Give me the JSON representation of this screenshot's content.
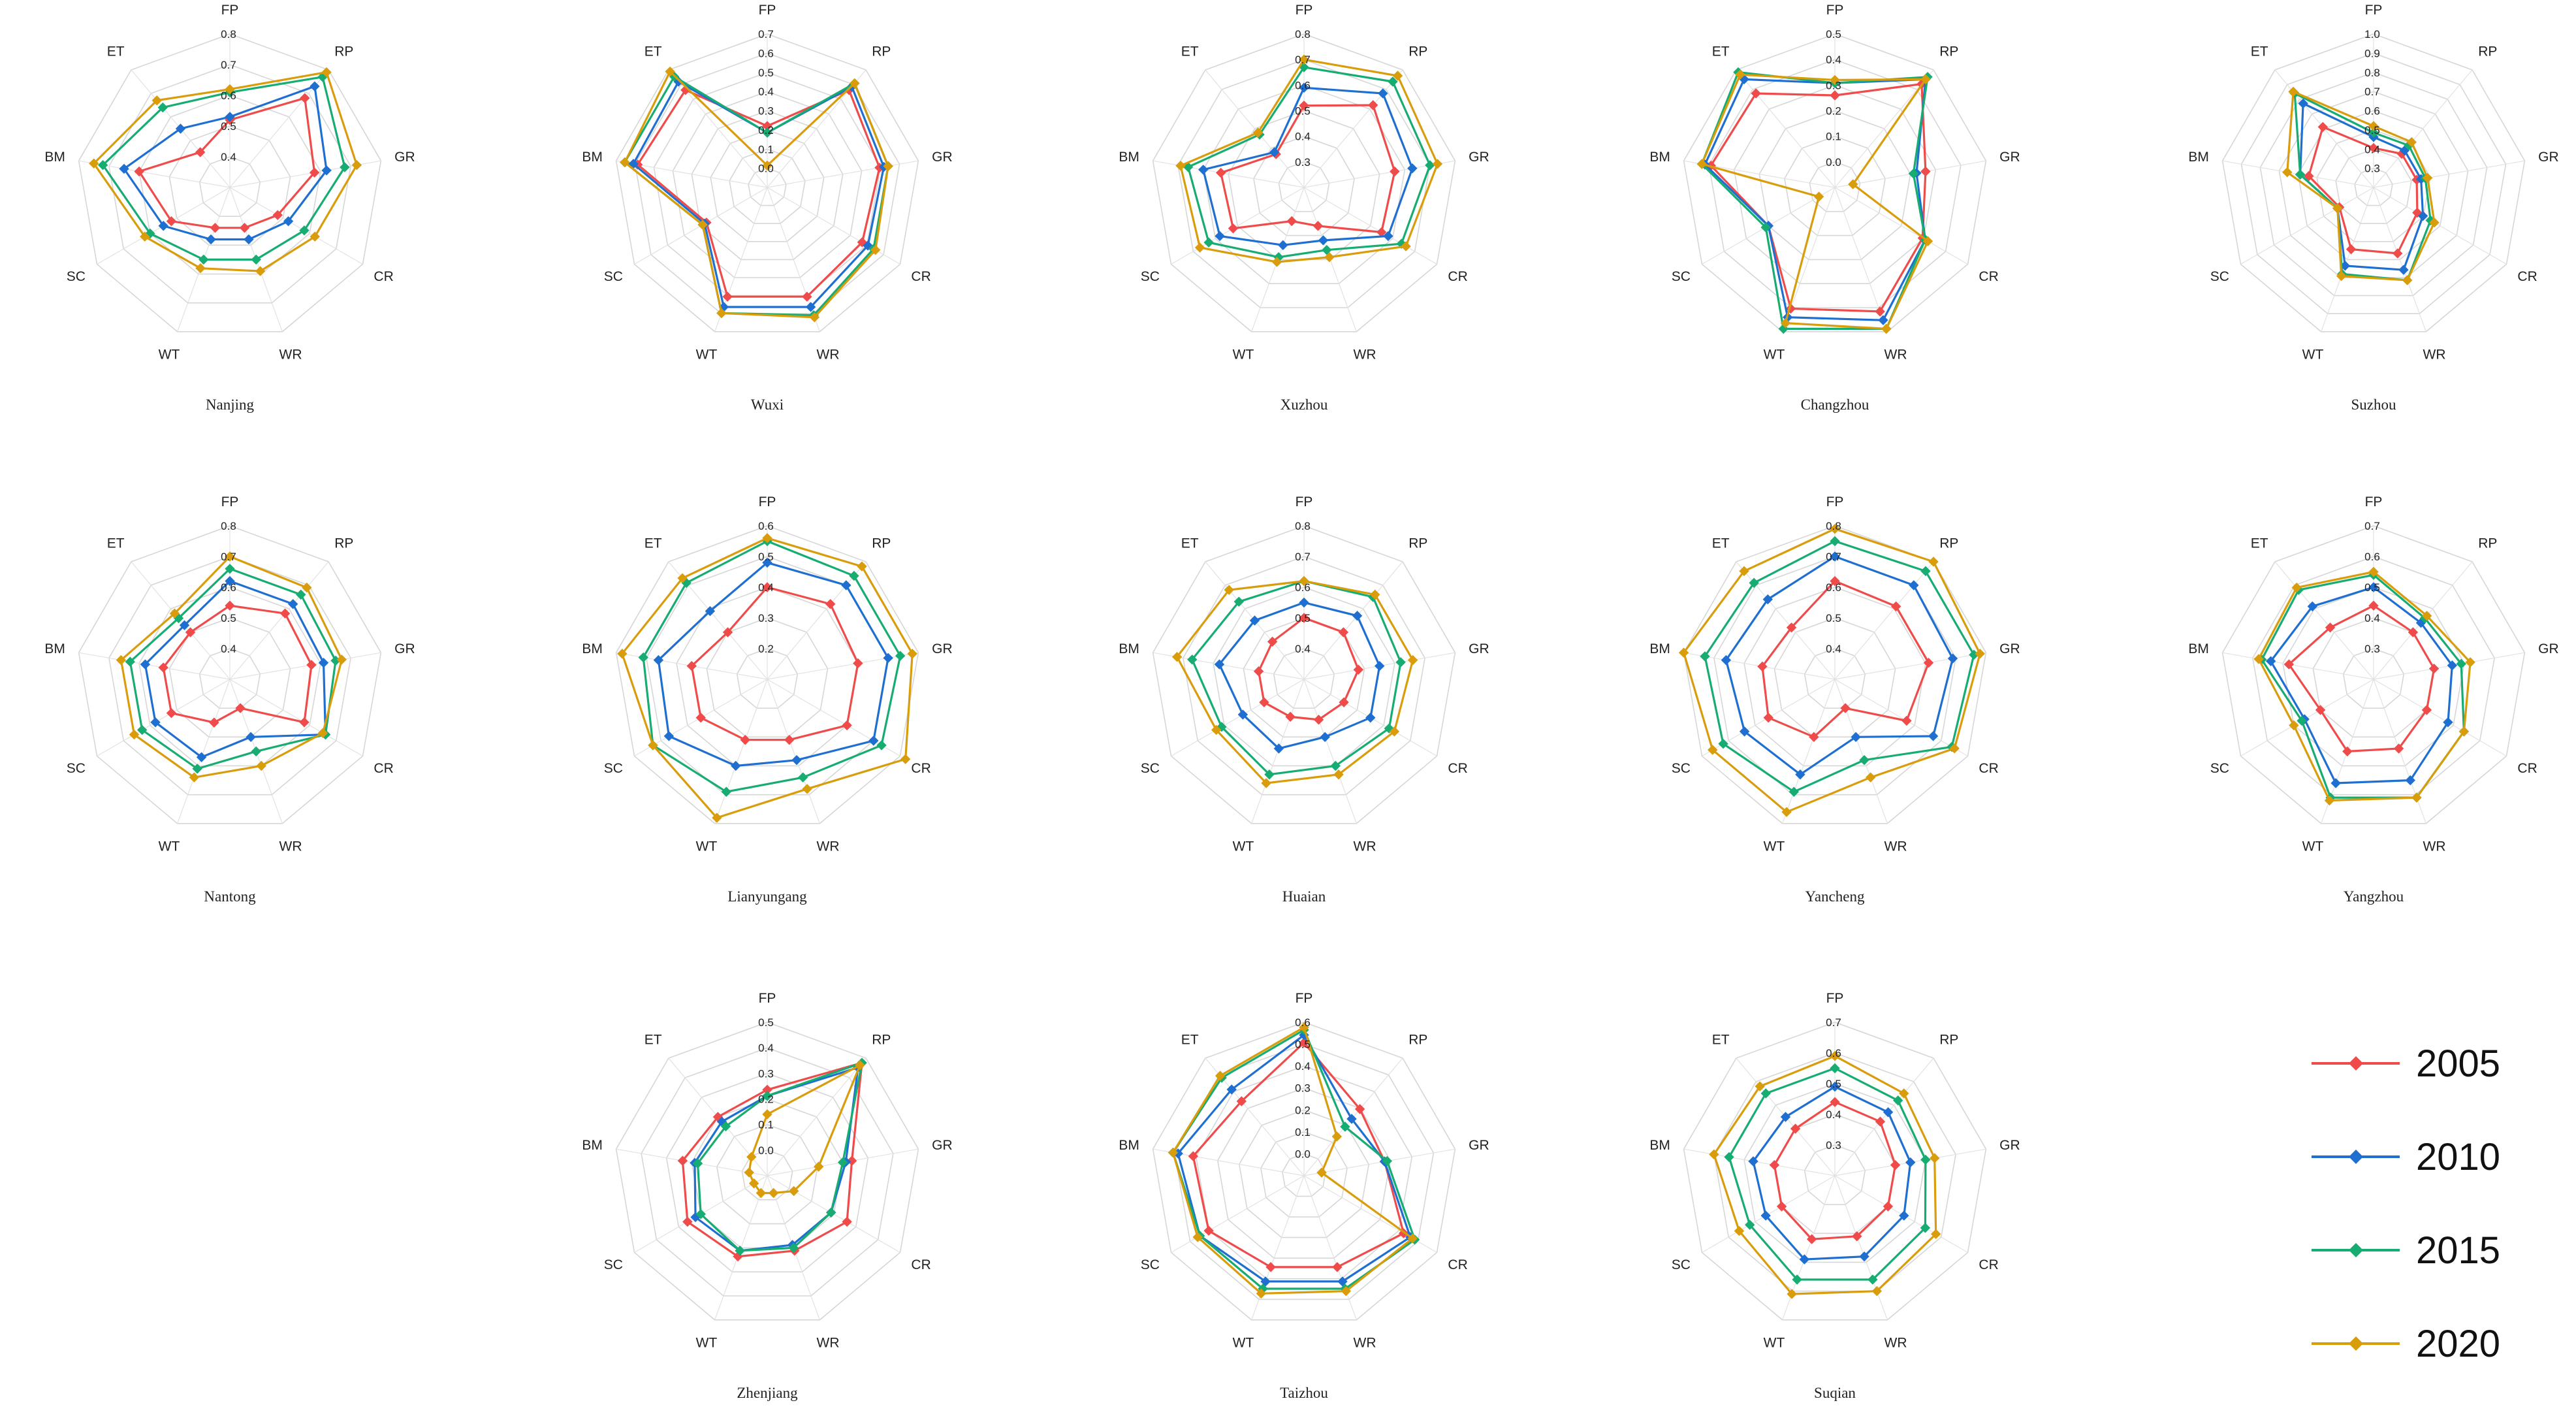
{
  "legend": {
    "entries": [
      {
        "label": "2005",
        "color": "#ef4b4b"
      },
      {
        "label": "2010",
        "color": "#1f6fd1"
      },
      {
        "label": "2015",
        "color": "#16ac72"
      },
      {
        "label": "2020",
        "color": "#d99c0b"
      }
    ]
  },
  "chart_data": [
    {
      "type": "radar",
      "title": "Nanjing",
      "axes": [
        "FP",
        "RP",
        "GR",
        "CR",
        "WR",
        "WT",
        "SC",
        "BM",
        "ET"
      ],
      "ticks": [
        "0.4",
        "0.5",
        "0.6",
        "0.7",
        "0.8"
      ],
      "rmin": 0.3,
      "rmax": 0.8,
      "series": [
        {
          "name": "2005",
          "values": [
            0.52,
            0.68,
            0.58,
            0.48,
            0.44,
            0.44,
            0.52,
            0.6,
            0.45
          ]
        },
        {
          "name": "2010",
          "values": [
            0.53,
            0.73,
            0.62,
            0.52,
            0.48,
            0.48,
            0.55,
            0.65,
            0.55
          ]
        },
        {
          "name": "2015",
          "values": [
            0.61,
            0.77,
            0.68,
            0.58,
            0.55,
            0.55,
            0.6,
            0.72,
            0.64
          ]
        },
        {
          "name": "2020",
          "values": [
            0.62,
            0.79,
            0.72,
            0.62,
            0.59,
            0.58,
            0.62,
            0.75,
            0.67
          ]
        }
      ]
    },
    {
      "type": "radar",
      "title": "Wuxi",
      "axes": [
        "FP",
        "RP",
        "GR",
        "CR",
        "WR",
        "WT",
        "SC",
        "BM",
        "ET"
      ],
      "ticks": [
        "0.0",
        "0.1",
        "0.2",
        "0.3",
        "0.4",
        "0.5",
        "0.6",
        "0.7"
      ],
      "rmin": 0,
      "rmax": 0.7,
      "series": [
        {
          "name": "2005",
          "values": [
            0.28,
            0.58,
            0.52,
            0.5,
            0.53,
            0.53,
            0.32,
            0.6,
            0.58
          ]
        },
        {
          "name": "2010",
          "values": [
            0.25,
            0.6,
            0.54,
            0.53,
            0.58,
            0.58,
            0.33,
            0.62,
            0.63
          ]
        },
        {
          "name": "2015",
          "values": [
            0.25,
            0.62,
            0.56,
            0.56,
            0.62,
            0.61,
            0.34,
            0.66,
            0.66
          ]
        },
        {
          "name": "2020",
          "values": [
            0.1,
            0.62,
            0.56,
            0.57,
            0.63,
            0.61,
            0.34,
            0.66,
            0.69
          ]
        }
      ]
    },
    {
      "type": "radar",
      "title": "Xuzhou",
      "axes": [
        "FP",
        "RP",
        "GR",
        "CR",
        "WR",
        "WT",
        "SC",
        "BM",
        "ET"
      ],
      "ticks": [
        "0.3",
        "0.4",
        "0.5",
        "0.6",
        "0.7",
        "0.8"
      ],
      "rmin": 0.2,
      "rmax": 0.8,
      "series": [
        {
          "name": "2005",
          "values": [
            0.52,
            0.62,
            0.56,
            0.55,
            0.36,
            0.34,
            0.52,
            0.53,
            0.37
          ]
        },
        {
          "name": "2010",
          "values": [
            0.59,
            0.68,
            0.63,
            0.58,
            0.42,
            0.44,
            0.58,
            0.6,
            0.38
          ]
        },
        {
          "name": "2015",
          "values": [
            0.67,
            0.74,
            0.7,
            0.64,
            0.46,
            0.49,
            0.63,
            0.66,
            0.47
          ]
        },
        {
          "name": "2020",
          "values": [
            0.7,
            0.77,
            0.73,
            0.66,
            0.49,
            0.51,
            0.67,
            0.69,
            0.48
          ]
        }
      ]
    },
    {
      "type": "radar",
      "title": "Changzhou",
      "axes": [
        "FP",
        "RP",
        "GR",
        "CR",
        "WR",
        "WT",
        "SC",
        "BM",
        "ET"
      ],
      "ticks": [
        "0.0",
        "0.1",
        "0.2",
        "0.3",
        "0.4",
        "0.5"
      ],
      "rmin": 0,
      "rmax": 0.5,
      "series": [
        {
          "name": "2005",
          "values": [
            0.3,
            0.44,
            0.3,
            0.33,
            0.43,
            0.42,
            0.25,
            0.41,
            0.4
          ]
        },
        {
          "name": "2010",
          "values": [
            0.34,
            0.46,
            0.27,
            0.34,
            0.46,
            0.45,
            0.25,
            0.43,
            0.46
          ]
        },
        {
          "name": "2015",
          "values": [
            0.34,
            0.47,
            0.26,
            0.34,
            0.49,
            0.49,
            0.26,
            0.44,
            0.49
          ]
        },
        {
          "name": "2020",
          "values": [
            0.35,
            0.46,
            0.06,
            0.35,
            0.49,
            0.47,
            0.06,
            0.44,
            0.48
          ]
        }
      ]
    },
    {
      "type": "radar",
      "title": "Suzhou",
      "axes": [
        "FP",
        "RP",
        "GR",
        "CR",
        "WR",
        "WT",
        "SC",
        "BM",
        "ET"
      ],
      "ticks": [
        "0.3",
        "0.4",
        "0.5",
        "0.6",
        "0.7",
        "0.8",
        "0.9",
        "1.0"
      ],
      "rmin": 0.3,
      "rmax": 1.0,
      "series": [
        {
          "name": "2005",
          "values": [
            0.48,
            0.5,
            0.5,
            0.53,
            0.62,
            0.6,
            0.48,
            0.6,
            0.66
          ]
        },
        {
          "name": "2010",
          "values": [
            0.53,
            0.52,
            0.52,
            0.56,
            0.7,
            0.68,
            0.49,
            0.64,
            0.8
          ]
        },
        {
          "name": "2015",
          "values": [
            0.55,
            0.55,
            0.54,
            0.6,
            0.75,
            0.72,
            0.49,
            0.64,
            0.86
          ]
        },
        {
          "name": "2020",
          "values": [
            0.58,
            0.57,
            0.55,
            0.62,
            0.75,
            0.73,
            0.49,
            0.7,
            0.87
          ]
        }
      ]
    },
    {
      "type": "radar",
      "title": "Nantong",
      "axes": [
        "FP",
        "RP",
        "GR",
        "CR",
        "WR",
        "WT",
        "SC",
        "BM",
        "ET"
      ],
      "ticks": [
        "0.4",
        "0.5",
        "0.6",
        "0.7",
        "0.8"
      ],
      "rmin": 0.3,
      "rmax": 0.8,
      "series": [
        {
          "name": "2005",
          "values": [
            0.54,
            0.58,
            0.57,
            0.58,
            0.4,
            0.45,
            0.52,
            0.52,
            0.5
          ]
        },
        {
          "name": "2010",
          "values": [
            0.62,
            0.62,
            0.61,
            0.66,
            0.5,
            0.57,
            0.58,
            0.58,
            0.53
          ]
        },
        {
          "name": "2015",
          "values": [
            0.66,
            0.66,
            0.65,
            0.66,
            0.55,
            0.61,
            0.63,
            0.63,
            0.56
          ]
        },
        {
          "name": "2020",
          "values": [
            0.7,
            0.69,
            0.67,
            0.65,
            0.6,
            0.64,
            0.66,
            0.66,
            0.58
          ]
        }
      ]
    },
    {
      "type": "radar",
      "title": "Lianyungang",
      "axes": [
        "FP",
        "RP",
        "GR",
        "CR",
        "WR",
        "WT",
        "SC",
        "BM",
        "ET"
      ],
      "ticks": [
        "0.2",
        "0.3",
        "0.4",
        "0.5",
        "0.6"
      ],
      "rmin": 0.1,
      "rmax": 0.6,
      "series": [
        {
          "name": "2005",
          "values": [
            0.4,
            0.42,
            0.4,
            0.4,
            0.31,
            0.31,
            0.35,
            0.35,
            0.3
          ]
        },
        {
          "name": "2010",
          "values": [
            0.48,
            0.5,
            0.5,
            0.5,
            0.38,
            0.4,
            0.47,
            0.46,
            0.39
          ]
        },
        {
          "name": "2015",
          "values": [
            0.55,
            0.54,
            0.54,
            0.53,
            0.44,
            0.49,
            0.53,
            0.51,
            0.51
          ]
        },
        {
          "name": "2020",
          "values": [
            0.56,
            0.58,
            0.58,
            0.62,
            0.48,
            0.58,
            0.53,
            0.58,
            0.53
          ]
        }
      ]
    },
    {
      "type": "radar",
      "title": "Huaian",
      "axes": [
        "FP",
        "RP",
        "GR",
        "CR",
        "WR",
        "WT",
        "SC",
        "BM",
        "ET"
      ],
      "ticks": [
        "0.4",
        "0.5",
        "0.6",
        "0.7",
        "0.8"
      ],
      "rmin": 0.3,
      "rmax": 0.8,
      "series": [
        {
          "name": "2005",
          "values": [
            0.5,
            0.5,
            0.48,
            0.45,
            0.44,
            0.43,
            0.45,
            0.45,
            0.46
          ]
        },
        {
          "name": "2010",
          "values": [
            0.55,
            0.57,
            0.55,
            0.55,
            0.5,
            0.54,
            0.53,
            0.58,
            0.55
          ]
        },
        {
          "name": "2015",
          "values": [
            0.62,
            0.65,
            0.62,
            0.62,
            0.6,
            0.63,
            0.61,
            0.67,
            0.63
          ]
        },
        {
          "name": "2020",
          "values": [
            0.62,
            0.66,
            0.66,
            0.64,
            0.63,
            0.66,
            0.63,
            0.72,
            0.68
          ]
        }
      ]
    },
    {
      "type": "radar",
      "title": "Yancheng",
      "axes": [
        "FP",
        "RP",
        "GR",
        "CR",
        "WR",
        "WT",
        "SC",
        "BM",
        "ET"
      ],
      "ticks": [
        "0.4",
        "0.5",
        "0.6",
        "0.7",
        "0.8"
      ],
      "rmin": 0.3,
      "rmax": 0.8,
      "series": [
        {
          "name": "2005",
          "values": [
            0.62,
            0.61,
            0.61,
            0.57,
            0.4,
            0.5,
            0.55,
            0.54,
            0.52
          ]
        },
        {
          "name": "2010",
          "values": [
            0.7,
            0.7,
            0.69,
            0.67,
            0.5,
            0.63,
            0.64,
            0.66,
            0.64
          ]
        },
        {
          "name": "2015",
          "values": [
            0.75,
            0.76,
            0.76,
            0.74,
            0.58,
            0.69,
            0.72,
            0.73,
            0.71
          ]
        },
        {
          "name": "2020",
          "values": [
            0.79,
            0.8,
            0.78,
            0.75,
            0.64,
            0.76,
            0.76,
            0.8,
            0.76
          ]
        }
      ]
    },
    {
      "type": "radar",
      "title": "Yangzhou",
      "axes": [
        "FP",
        "RP",
        "GR",
        "CR",
        "WR",
        "WT",
        "SC",
        "BM",
        "ET"
      ],
      "ticks": [
        "0.3",
        "0.4",
        "0.5",
        "0.6",
        "0.7"
      ],
      "rmin": 0.2,
      "rmax": 0.7,
      "series": [
        {
          "name": "2005",
          "values": [
            0.44,
            0.4,
            0.4,
            0.4,
            0.44,
            0.45,
            0.4,
            0.48,
            0.42
          ]
        },
        {
          "name": "2010",
          "values": [
            0.5,
            0.44,
            0.46,
            0.48,
            0.55,
            0.56,
            0.46,
            0.54,
            0.51
          ]
        },
        {
          "name": "2015",
          "values": [
            0.54,
            0.46,
            0.49,
            0.54,
            0.61,
            0.61,
            0.47,
            0.57,
            0.58
          ]
        },
        {
          "name": "2020",
          "values": [
            0.55,
            0.47,
            0.52,
            0.54,
            0.61,
            0.62,
            0.5,
            0.58,
            0.59
          ]
        }
      ]
    },
    {
      "type": "radar",
      "title": "Zhenjiang",
      "axes": [
        "FP",
        "RP",
        "GR",
        "CR",
        "WR",
        "WT",
        "SC",
        "BM",
        "ET"
      ],
      "ticks": [
        "0.0",
        "0.1",
        "0.2",
        "0.3",
        "0.4",
        "0.5"
      ],
      "rmin": 0,
      "rmax": 0.5,
      "series": [
        {
          "name": "2005",
          "values": [
            0.28,
            0.48,
            0.28,
            0.3,
            0.26,
            0.28,
            0.3,
            0.28,
            0.25
          ]
        },
        {
          "name": "2010",
          "values": [
            0.26,
            0.46,
            0.26,
            0.24,
            0.24,
            0.26,
            0.27,
            0.24,
            0.23
          ]
        },
        {
          "name": "2015",
          "values": [
            0.26,
            0.48,
            0.25,
            0.24,
            0.25,
            0.26,
            0.25,
            0.23,
            0.21
          ]
        },
        {
          "name": "2020",
          "values": [
            0.2,
            0.47,
            0.17,
            0.1,
            0.06,
            0.06,
            0.05,
            0.06,
            0.08
          ]
        }
      ]
    },
    {
      "type": "radar",
      "title": "Taizhou",
      "axes": [
        "FP",
        "RP",
        "GR",
        "CR",
        "WR",
        "WT",
        "SC",
        "BM",
        "ET"
      ],
      "ticks": [
        "0.0",
        "0.1",
        "0.2",
        "0.3",
        "0.4",
        "0.5",
        "0.6"
      ],
      "rmin": 0,
      "rmax": 0.6,
      "series": [
        {
          "name": "2005",
          "values": [
            0.52,
            0.34,
            0.32,
            0.45,
            0.38,
            0.38,
            0.43,
            0.44,
            0.38
          ]
        },
        {
          "name": "2010",
          "values": [
            0.55,
            0.29,
            0.32,
            0.48,
            0.44,
            0.44,
            0.47,
            0.5,
            0.44
          ]
        },
        {
          "name": "2015",
          "values": [
            0.57,
            0.25,
            0.33,
            0.5,
            0.47,
            0.47,
            0.47,
            0.52,
            0.5
          ]
        },
        {
          "name": "2020",
          "values": [
            0.58,
            0.2,
            0.07,
            0.49,
            0.48,
            0.49,
            0.48,
            0.52,
            0.51
          ]
        }
      ]
    },
    {
      "type": "radar",
      "title": "Suqian",
      "axes": [
        "FP",
        "RP",
        "GR",
        "CR",
        "WR",
        "WT",
        "SC",
        "BM",
        "ET"
      ],
      "ticks": [
        "0.3",
        "0.4",
        "0.5",
        "0.6",
        "0.7"
      ],
      "rmin": 0.2,
      "rmax": 0.7,
      "series": [
        {
          "name": "2005",
          "values": [
            0.44,
            0.43,
            0.4,
            0.4,
            0.41,
            0.42,
            0.4,
            0.4,
            0.4
          ]
        },
        {
          "name": "2010",
          "values": [
            0.49,
            0.47,
            0.45,
            0.46,
            0.48,
            0.49,
            0.46,
            0.47,
            0.45
          ]
        },
        {
          "name": "2015",
          "values": [
            0.55,
            0.52,
            0.5,
            0.54,
            0.56,
            0.56,
            0.52,
            0.55,
            0.55
          ]
        },
        {
          "name": "2020",
          "values": [
            0.59,
            0.55,
            0.53,
            0.58,
            0.6,
            0.61,
            0.56,
            0.6,
            0.58
          ]
        }
      ]
    }
  ]
}
